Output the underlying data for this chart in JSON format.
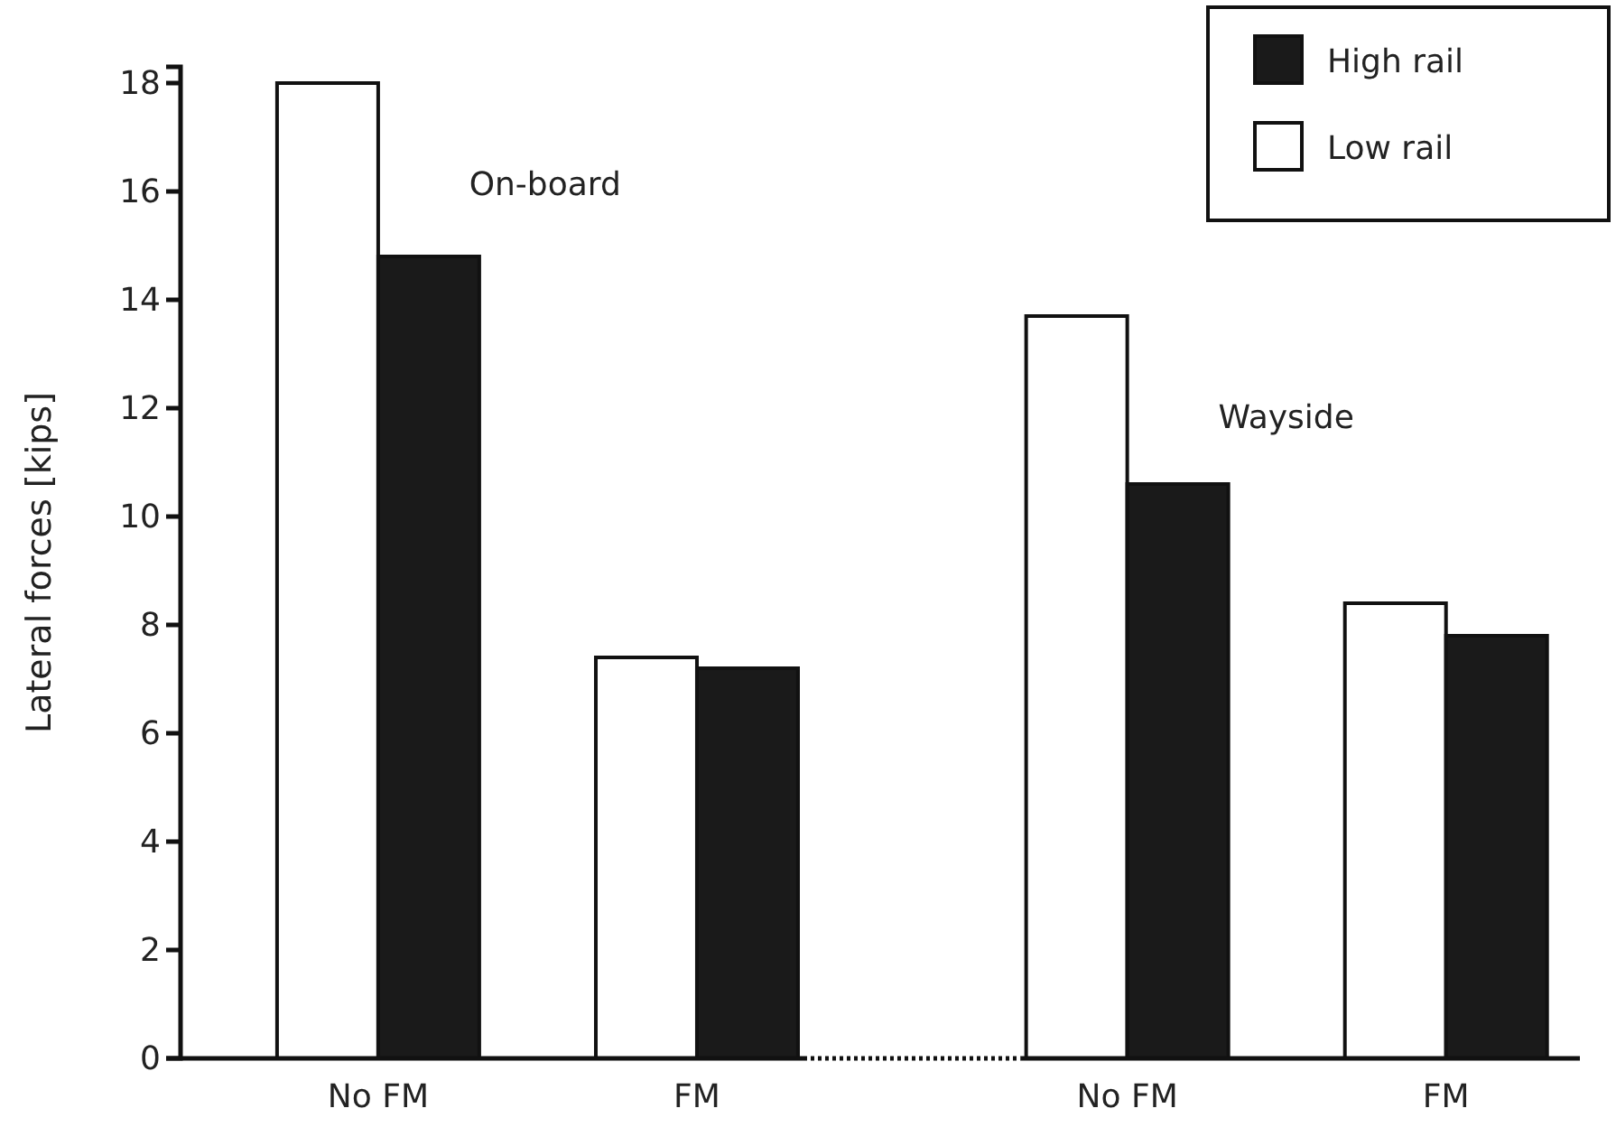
{
  "chart_data": {
    "type": "bar",
    "ylabel": "Lateral forces [kips]",
    "categories": [
      "No FM",
      "FM",
      "No FM",
      "FM"
    ],
    "series": [
      {
        "name": "Low rail",
        "color": "#ffffff",
        "values": [
          18.0,
          7.4,
          13.7,
          8.4
        ]
      },
      {
        "name": "High rail",
        "color": "#1a1a1a",
        "values": [
          14.8,
          7.2,
          10.6,
          7.8
        ]
      }
    ],
    "ylim": [
      0,
      18.3
    ],
    "yticks": [
      0,
      2,
      4,
      6,
      8,
      10,
      12,
      14,
      16,
      18
    ],
    "legend": "top right",
    "annotations": [
      "On-board",
      "Wayside"
    ]
  }
}
